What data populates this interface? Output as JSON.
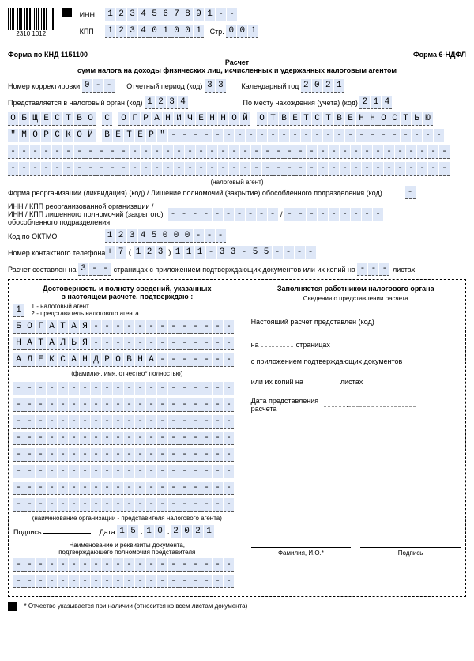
{
  "header": {
    "barcode_digits": "2310 1012",
    "inn_label": "ИНН",
    "inn": "1234567891--",
    "kpp_label": "КПП",
    "kpp": "123401001",
    "str_label": "Стр.",
    "str": "001",
    "form_code": "Форма по КНД 1151100",
    "form_name": "Форма 6-НДФЛ",
    "title1": "Расчет",
    "title2": "сумм налога на доходы физических лиц, исчисленных и удержанных налоговым агентом"
  },
  "fields": {
    "corr_label": "Номер корректировки",
    "corr": "0--",
    "period_label": "Отчетный период (код)",
    "period": "33",
    "year_label": "Календарный год",
    "year": "2021",
    "submit_label": "Представляется в налоговый орган (код)",
    "submit": "1234",
    "loc_label": "По месту нахождения (учета) (код)",
    "loc": "214",
    "agent_label": "(налоговый агент)",
    "reorg_label": "Форма реорганизации (ликвидация) (код) / Лишение полномочий (закрытие) обособленного подразделения (код)",
    "reorg": "-",
    "reorg_inn_label": "ИНН / КПП реорганизованной организации / ИНН / КПП лишенного полномочий (закрытого) обособленного подразделения",
    "reorg_inn": "----------",
    "reorg_kpp": "---------",
    "oktmo_label": "Код по ОКТМО",
    "oktmo": "12345000---",
    "phone_label": "Номер контактного телефона",
    "phone": "+7(123)111-33-55----",
    "pages1_label": "Расчет составлен на",
    "pages1": "3--",
    "pages2_label": "страницах с приложением подтверждающих документов или их копий на",
    "pages2": "---",
    "pages2_suffix": "листах"
  },
  "name_lines": [
    "ОБЩЕСТВО С ОГРАНИЧЕННОЙ ОТВЕТСТВЕННОСТЬЮ",
    "\"МОРСКОЙ ВЕТЕР\"-------------------------",
    "----------------------------------------",
    "----------------------------------------"
  ],
  "left_block": {
    "title1": "Достоверность и полноту сведений, указанных",
    "title2": "в настоящем расчете, подтверждаю :",
    "type": "1",
    "type1": "1 - налоговый агент",
    "type2": "2 - представитель налогового агента",
    "name1": "БОГАТАЯ-------------",
    "name2": "НАТАЛЬЯ-------------",
    "name3": "АЛЕКСАНДРОВНА-------",
    "fio_label": "(фамилия, имя, отчество* полностью)",
    "org_blank": "--------------------",
    "org_label": "(наименование организации - представителя налогового агента)",
    "sign_label": "Подпись",
    "date_label": "Дата",
    "date": "15.10.2021",
    "doc_label1": "Наименование и реквизиты документа,",
    "doc_label2": "подтверждающего полномочия представителя"
  },
  "right_block": {
    "title": "Заполняется работником налогового органа",
    "subtitle": "Сведения о представлении расчета",
    "row1": "Настоящий расчет представлен  (код)",
    "row2a": "на",
    "row2b": "страницах",
    "row3": "с приложением подтверждающих документов",
    "row4a": "или их копий на",
    "row4b": "листах",
    "row5": "Дата представления расчета",
    "fio": "Фамилия, И.О.*",
    "sig": "Подпись"
  },
  "footer": "* Отчество указывается при наличии (относится ко всем листам документа)"
}
